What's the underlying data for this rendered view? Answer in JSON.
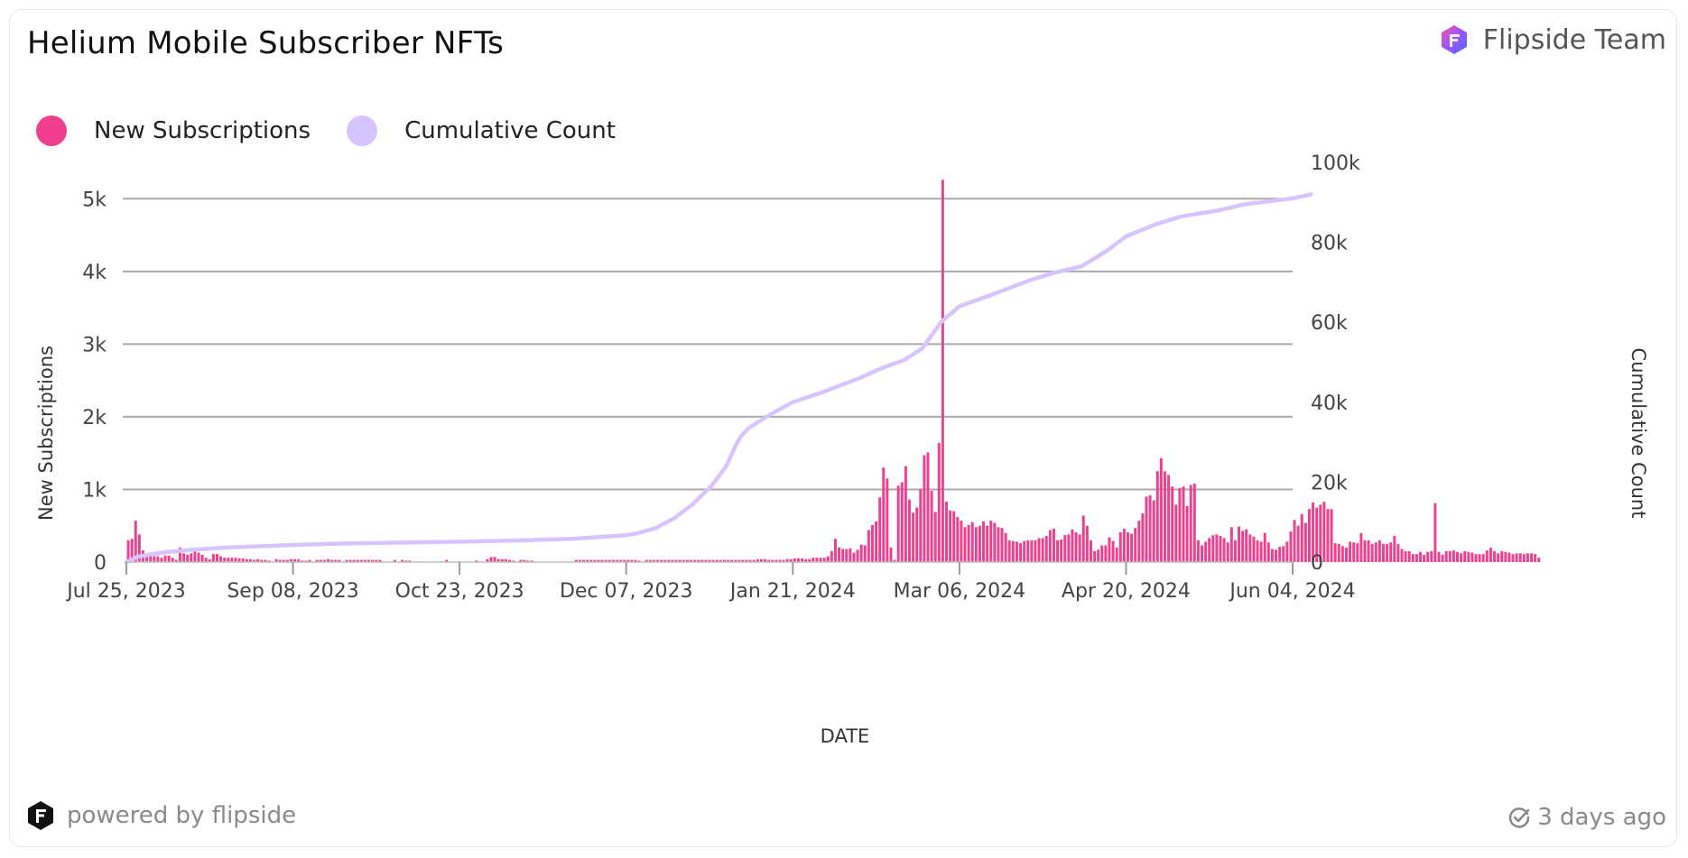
{
  "header": {
    "title": "Helium Mobile Subscriber NFTs",
    "team_name": "Flipside Team"
  },
  "footer": {
    "powered_by": "powered by flipside",
    "updated": "3 days ago"
  },
  "chart_data": {
    "type": "bar+line",
    "xlabel": "DATE",
    "ylabel_left": "New Subscriptions",
    "ylabel_right": "Cumulative Count",
    "x_tick_labels": [
      "Jul 25, 2023",
      "Sep 08, 2023",
      "Oct 23, 2023",
      "Dec 07, 2023",
      "Jan 21, 2024",
      "Mar 06, 2024",
      "Apr 20, 2024",
      "Jun 04, 2024"
    ],
    "y_left_ticks": [
      "0",
      "1k",
      "2k",
      "3k",
      "4k",
      "5k"
    ],
    "y_right_ticks": [
      "0",
      "20k",
      "40k",
      "60k",
      "80k",
      "100k"
    ],
    "y_left_range": [
      0,
      5500
    ],
    "y_right_range": [
      0,
      100000
    ],
    "x_range": [
      "2023-07-25",
      "2024-06-04"
    ],
    "grid": true,
    "legend_position": "top-left",
    "series": [
      {
        "name": "New Subscriptions",
        "type": "bar",
        "axis": "left",
        "color": "#ef3f8e",
        "start_date": "2023-07-25",
        "values": [
          300,
          320,
          570,
          380,
          160,
          80,
          80,
          80,
          80,
          60,
          90,
          90,
          60,
          30,
          200,
          120,
          100,
          120,
          200,
          130,
          100,
          60,
          40,
          110,
          110,
          80,
          60,
          60,
          60,
          60,
          50,
          50,
          40,
          40,
          30,
          40,
          30,
          30,
          20,
          0,
          40,
          30,
          30,
          30,
          40,
          40,
          40,
          20,
          20,
          30,
          0,
          30,
          30,
          30,
          40,
          30,
          30,
          30,
          0,
          30,
          30,
          30,
          30,
          30,
          30,
          30,
          30,
          30,
          30,
          0,
          0,
          0,
          30,
          0,
          30,
          20,
          20,
          0,
          0,
          0,
          0,
          0,
          0,
          0,
          0,
          0,
          30,
          0,
          0,
          0,
          0,
          0,
          0,
          0,
          20,
          0,
          0,
          40,
          70,
          70,
          40,
          40,
          40,
          30,
          20,
          0,
          30,
          30,
          20,
          20,
          0,
          0,
          0,
          0,
          0,
          0,
          0,
          0,
          0,
          0,
          0,
          30,
          30,
          30,
          30,
          30,
          30,
          30,
          30,
          30,
          30,
          30,
          30,
          30,
          30,
          30,
          30,
          30,
          20,
          0,
          30,
          30,
          30,
          30,
          30,
          30,
          30,
          30,
          30,
          30,
          30,
          30,
          30,
          30,
          30,
          30,
          30,
          30,
          30,
          30,
          30,
          30,
          30,
          30,
          30,
          30,
          30,
          30,
          30,
          30,
          40,
          40,
          40,
          30,
          30,
          30,
          30,
          30,
          40,
          40,
          50,
          50,
          50,
          40,
          40,
          60,
          60,
          60,
          60,
          80,
          150,
          320,
          200,
          180,
          180,
          190,
          130,
          170,
          240,
          230,
          440,
          510,
          560,
          890,
          1300,
          1150,
          200,
          30,
          1050,
          1100,
          1320,
          860,
          680,
          750,
          1000,
          1470,
          1510,
          980,
          690,
          1640,
          5260,
          830,
          710,
          700,
          620,
          570,
          480,
          510,
          550,
          480,
          500,
          560,
          500,
          570,
          540,
          480,
          470,
          400,
          300,
          290,
          280,
          260,
          290,
          300,
          300,
          300,
          330,
          330,
          360,
          440,
          460,
          300,
          310,
          370,
          380,
          450,
          410,
          380,
          640,
          500,
          300,
          150,
          170,
          230,
          230,
          340,
          290,
          200,
          410,
          460,
          410,
          390,
          470,
          570,
          670,
          900,
          920,
          850,
          1250,
          1430,
          1250,
          1200,
          1040,
          790,
          1020,
          1040,
          770,
          1060,
          1080,
          300,
          230,
          280,
          330,
          370,
          380,
          360,
          330,
          270,
          480,
          300,
          490,
          430,
          450,
          380,
          350,
          300,
          280,
          400,
          270,
          180,
          170,
          210,
          220,
          280,
          420,
          580,
          500,
          660,
          540,
          730,
          820,
          750,
          790,
          830,
          730,
          730,
          260,
          250,
          220,
          200,
          280,
          270,
          260,
          400,
          300,
          300,
          250,
          270,
          300,
          250,
          250,
          270,
          360,
          250,
          180,
          150,
          150,
          110,
          110,
          140,
          100,
          140,
          150,
          810,
          140,
          100,
          150,
          150,
          160,
          140,
          120,
          150,
          140,
          130,
          110,
          110,
          110,
          160,
          200,
          150,
          120,
          150,
          140,
          130,
          110,
          120,
          120,
          110,
          120,
          120,
          110,
          60
        ]
      },
      {
        "name": "Cumulative Count",
        "type": "line",
        "axis": "right",
        "color": "#d7c4ff",
        "points": [
          [
            "2023-07-25",
            0
          ],
          [
            "2023-07-28",
            1300
          ],
          [
            "2023-08-01",
            2000
          ],
          [
            "2023-08-05",
            2500
          ],
          [
            "2023-08-12",
            3100
          ],
          [
            "2023-08-20",
            3600
          ],
          [
            "2023-08-28",
            3900
          ],
          [
            "2023-09-08",
            4300
          ],
          [
            "2023-09-24",
            4700
          ],
          [
            "2023-10-10",
            4900
          ],
          [
            "2023-10-23",
            5100
          ],
          [
            "2023-11-07",
            5400
          ],
          [
            "2023-11-22",
            5800
          ],
          [
            "2023-12-07",
            6700
          ],
          [
            "2023-12-10",
            7200
          ],
          [
            "2023-12-15",
            8500
          ],
          [
            "2023-12-20",
            11000
          ],
          [
            "2023-12-25",
            14500
          ],
          [
            "2023-12-30",
            19000
          ],
          [
            "2024-01-03",
            24000
          ],
          [
            "2024-01-05",
            28000
          ],
          [
            "2024-01-06",
            30000
          ],
          [
            "2024-01-07",
            31500
          ],
          [
            "2024-01-09",
            33500
          ],
          [
            "2024-01-15",
            37000
          ],
          [
            "2024-01-21",
            40000
          ],
          [
            "2024-01-29",
            42500
          ],
          [
            "2024-02-08",
            46000
          ],
          [
            "2024-02-14",
            48500
          ],
          [
            "2024-02-20",
            50500
          ],
          [
            "2024-02-25",
            53500
          ],
          [
            "2024-03-01",
            60000
          ],
          [
            "2024-03-06",
            64000
          ],
          [
            "2024-03-15",
            67000
          ],
          [
            "2024-03-25",
            70500
          ],
          [
            "2024-04-01",
            72500
          ],
          [
            "2024-04-08",
            74000
          ],
          [
            "2024-04-15",
            78000
          ],
          [
            "2024-04-20",
            81500
          ],
          [
            "2024-04-28",
            84500
          ],
          [
            "2024-05-05",
            86500
          ],
          [
            "2024-05-15",
            88000
          ],
          [
            "2024-05-22",
            89500
          ],
          [
            "2024-06-04",
            91000
          ],
          [
            "2024-06-09",
            92000
          ]
        ]
      }
    ]
  }
}
